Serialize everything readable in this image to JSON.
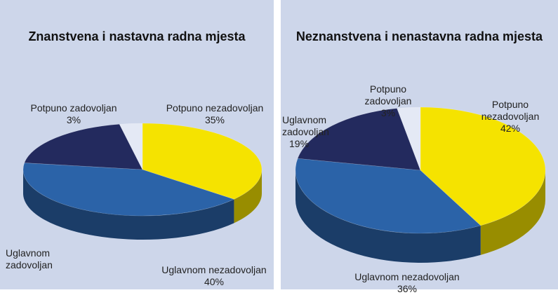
{
  "chart_data": [
    {
      "type": "pie",
      "title": "Znanstvena i nastavna radna mjesta",
      "slices": [
        {
          "label": "Potpuno nezadovoljan",
          "value": 35,
          "value_text": "35%",
          "color": "#f5e300"
        },
        {
          "label": "Uglavnom nezadovoljan",
          "value": 40,
          "value_text": "40%",
          "color": "#2b63a8"
        },
        {
          "label": "Uglavnom zadovoljan",
          "value": 19,
          "color": "#232a5e"
        },
        {
          "label": "Potpuno zadovoljan",
          "value": 3,
          "value_text": "3%",
          "color": "#e4e9f5"
        }
      ]
    },
    {
      "type": "pie",
      "title": "Neznanstvena i nenastavna radna mjesta",
      "slices": [
        {
          "label": "Potpuno nezadovoljan",
          "value": 42,
          "value_text": "42%",
          "color": "#f5e300"
        },
        {
          "label": "Uglavnom nezadovoljan",
          "value": 36,
          "value_text": "36%",
          "color": "#2b63a8"
        },
        {
          "label": "Uglavnom zadovoljan",
          "value": 19,
          "value_text": "19%",
          "color": "#232a5e"
        },
        {
          "label": "Potpuno zadovoljan",
          "value": 3,
          "value_text": "3%",
          "color": "#e4e9f5"
        }
      ]
    }
  ]
}
